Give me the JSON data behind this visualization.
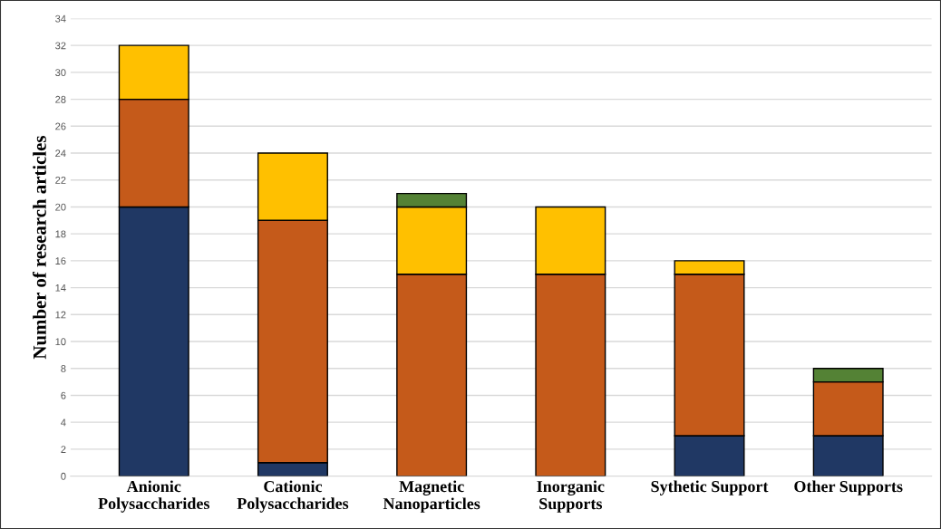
{
  "chart_data": {
    "type": "bar",
    "stacked": true,
    "ylabel": "Number of research articles",
    "categories": [
      "Anionic\nPolysaccharides",
      "Cationic\nPolysaccharides",
      "Magnetic\nNanoparticles",
      "Inorganic\nSupports",
      "Sythetic Support",
      "Other Supports"
    ],
    "series": [
      {
        "color": "#203864",
        "values": [
          20,
          1,
          null,
          null,
          3,
          3
        ]
      },
      {
        "color": "#c55a1a",
        "values": [
          8,
          18,
          15,
          15,
          12,
          4
        ]
      },
      {
        "color": "#ffc000",
        "values": [
          4,
          5,
          5,
          5,
          1,
          null
        ]
      },
      {
        "color": "#548235",
        "values": [
          null,
          null,
          1,
          null,
          null,
          1
        ]
      }
    ],
    "ylim": [
      0,
      34
    ],
    "yticks": [
      0,
      2,
      4,
      6,
      8,
      10,
      12,
      14,
      16,
      18,
      20,
      22,
      24,
      26,
      28,
      30,
      32,
      34
    ],
    "grid": "y"
  }
}
